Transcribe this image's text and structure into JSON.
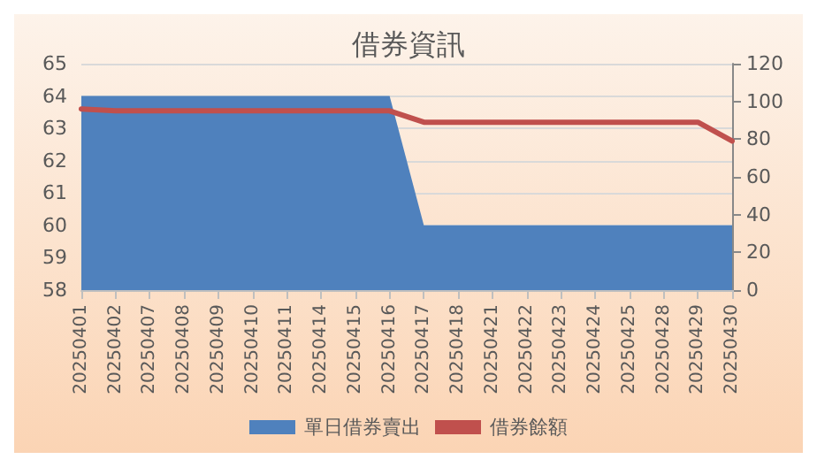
{
  "chart_data": {
    "type": "area",
    "title": "借券資訊",
    "categories": [
      "20250401",
      "20250402",
      "20250407",
      "20250408",
      "20250409",
      "20250410",
      "20250411",
      "20250414",
      "20250415",
      "20250416",
      "20250417",
      "20250418",
      "20250421",
      "20250422",
      "20250423",
      "20250424",
      "20250425",
      "20250428",
      "20250429",
      "20250430"
    ],
    "series": [
      {
        "name": "單日借券賣出",
        "color": "#4f81bd",
        "values": [
          64,
          64,
          64,
          64,
          64,
          64,
          64,
          64,
          64,
          64,
          60,
          60,
          60,
          60,
          60,
          60,
          60,
          60,
          60,
          60
        ]
      },
      {
        "name": "借券餘額",
        "type": "line",
        "axis": "y2",
        "color": "#c0504d",
        "values": [
          96,
          95,
          95,
          95,
          95,
          95,
          95,
          95,
          95,
          95,
          89,
          89,
          89,
          89,
          89,
          89,
          89,
          89,
          89,
          79
        ]
      }
    ],
    "ylim": [
      58,
      65
    ],
    "yticks": [
      58,
      59,
      60,
      61,
      62,
      63,
      64,
      65
    ],
    "y2lim": [
      0,
      120
    ],
    "y2ticks": [
      0,
      20,
      40,
      60,
      80,
      100,
      120
    ],
    "grid": "y",
    "legend": "bottom",
    "marker": "none",
    "line_style": "solid"
  }
}
